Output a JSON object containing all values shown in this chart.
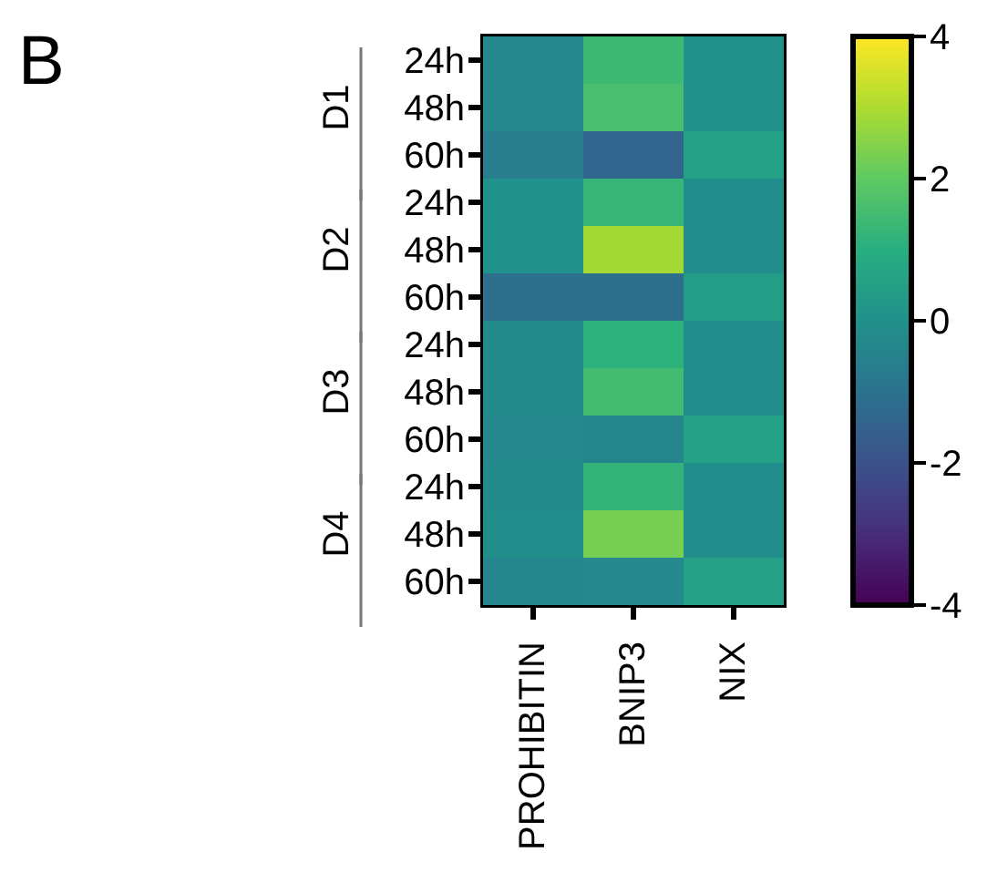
{
  "chart_data": {
    "type": "heatmap",
    "title": "B",
    "categories": [
      "PROHIBITIN",
      "BNIP3",
      "NIX"
    ],
    "y_categories": [
      "24h",
      "48h",
      "60h",
      "24h",
      "48h",
      "60h",
      "24h",
      "48h",
      "60h",
      "24h",
      "48h",
      "60h"
    ],
    "annotations": [
      "D1",
      "D2",
      "D3",
      "D4"
    ],
    "cells": [
      [
        -0.3,
        1.4,
        0.0
      ],
      [
        -0.3,
        1.6,
        0.0
      ],
      [
        -0.6,
        -1.4,
        0.6
      ],
      [
        0.0,
        1.3,
        -0.1
      ],
      [
        0.0,
        2.9,
        -0.1
      ],
      [
        -1.1,
        -1.1,
        0.4
      ],
      [
        -0.2,
        1.1,
        -0.1
      ],
      [
        -0.2,
        1.5,
        -0.1
      ],
      [
        -0.3,
        -0.4,
        0.6
      ],
      [
        -0.2,
        1.2,
        -0.1
      ],
      [
        -0.1,
        2.3,
        -0.1
      ],
      [
        -0.4,
        -0.3,
        0.5
      ]
    ],
    "clim": [
      -4,
      4
    ],
    "cticks": [
      -4,
      -2,
      0,
      2,
      4
    ]
  }
}
